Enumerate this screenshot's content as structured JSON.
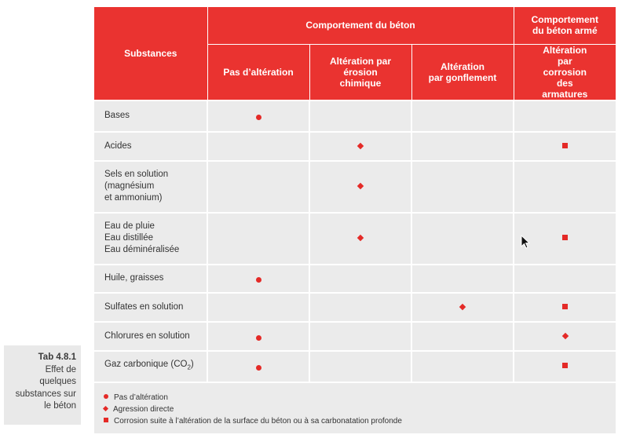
{
  "caption": {
    "tab_no": "Tab 4.8.1",
    "text": "Effet de quelques substances sur le béton"
  },
  "table": {
    "header": {
      "substances": "Substances",
      "group_beton": "Comportement du béton",
      "group_beton_arme": "Comportement du béton armé",
      "col_pas": "Pas d’altération",
      "col_erosion": "Altération par érosion chimique",
      "col_gonflement": "Altération par gonflement",
      "col_corrosion": "Altération par corrosion des armatures"
    },
    "rows": [
      {
        "label": "Bases",
        "pas": "circle",
        "erosion": "",
        "gonflement": "",
        "corrosion": ""
      },
      {
        "label": "Acides",
        "pas": "",
        "erosion": "diamond",
        "gonflement": "",
        "corrosion": "square"
      },
      {
        "label": "Sels en solution (magnésium et ammonium)",
        "pas": "",
        "erosion": "diamond",
        "gonflement": "",
        "corrosion": ""
      },
      {
        "label": "Eau de pluie Eau distillée Eau déminéralisée",
        "pas": "",
        "erosion": "diamond",
        "gonflement": "",
        "corrosion": "square"
      },
      {
        "label": "Huile, graisses",
        "pas": "circle",
        "erosion": "",
        "gonflement": "",
        "corrosion": ""
      },
      {
        "label": "Sulfates en solution",
        "pas": "",
        "erosion": "",
        "gonflement": "diamond",
        "corrosion": "square"
      },
      {
        "label": "Chlorures en solution",
        "pas": "circle",
        "erosion": "",
        "gonflement": "",
        "corrosion": "diamond"
      },
      {
        "label": "Gaz carbonique (CO2)",
        "pas": "circle",
        "erosion": "",
        "gonflement": "",
        "corrosion": "square"
      }
    ]
  },
  "legend": [
    {
      "symbol": "circle",
      "text": "Pas d’altération"
    },
    {
      "symbol": "diamond",
      "text": "Agression directe"
    },
    {
      "symbol": "square",
      "text": "Corrosion suite à l’altération de la surface du béton ou à sa carbonatation profonde"
    }
  ],
  "colors": {
    "accent": "#ea3330",
    "cell": "#ebebeb",
    "caption_bg": "#e9e9e9"
  },
  "icons": {
    "circle": "red-dot-icon",
    "diamond": "red-diamond-icon",
    "square": "red-square-icon",
    "cursor": "mouse-pointer-icon"
  }
}
